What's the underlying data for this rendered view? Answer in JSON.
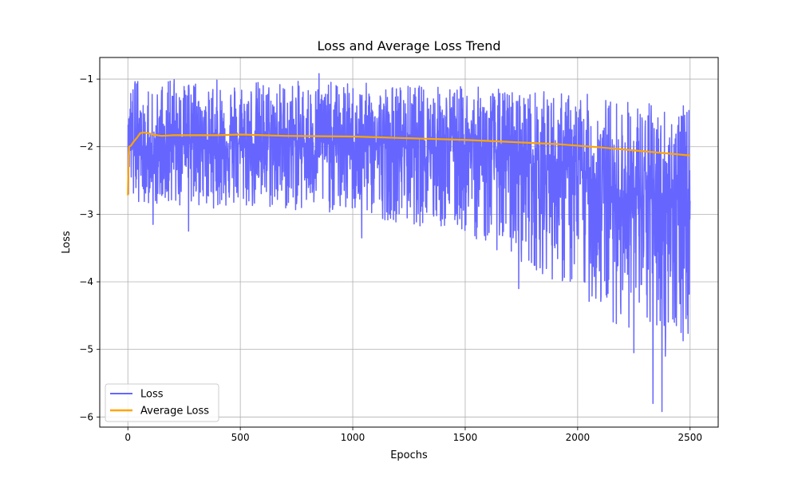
{
  "chart_data": {
    "type": "line",
    "title": "Loss and Average Loss Trend",
    "xlabel": "Epochs",
    "ylabel": "Loss",
    "xlim": [
      -125,
      2625
    ],
    "ylim": [
      -6.15,
      -0.68
    ],
    "xticks": [
      0,
      500,
      1000,
      1500,
      2000,
      2500
    ],
    "yticks": [
      -1,
      -2,
      -3,
      -4,
      -5,
      -6
    ],
    "grid": true,
    "legend": "lower-left",
    "series": [
      {
        "name": "Loss",
        "color": "#6666ff",
        "kind": "noisy",
        "x_range": [
          0,
          2500
        ],
        "points": 2501,
        "center": [
          [
            0,
            -2.0
          ],
          [
            500,
            -1.95
          ],
          [
            1000,
            -1.95
          ],
          [
            1500,
            -2.0
          ],
          [
            1800,
            -2.2
          ],
          [
            2000,
            -2.4
          ],
          [
            2200,
            -2.7
          ],
          [
            2400,
            -2.8
          ],
          [
            2500,
            -2.8
          ]
        ],
        "upper": [
          [
            0,
            -1.0
          ],
          [
            500,
            -1.0
          ],
          [
            1000,
            -1.05
          ],
          [
            1500,
            -1.1
          ],
          [
            2000,
            -1.2
          ],
          [
            2500,
            -1.4
          ]
        ],
        "lower": [
          [
            0,
            -2.8
          ],
          [
            300,
            -2.9
          ],
          [
            1000,
            -3.0
          ],
          [
            1500,
            -3.3
          ],
          [
            1800,
            -3.8
          ],
          [
            2000,
            -4.2
          ],
          [
            2200,
            -4.7
          ],
          [
            2500,
            -4.9
          ]
        ],
        "extremes": [
          [
            850,
            -0.92
          ],
          [
            112,
            -3.15
          ],
          [
            270,
            -3.25
          ],
          [
            1040,
            -3.35
          ],
          [
            1738,
            -4.1
          ],
          [
            2250,
            -5.05
          ],
          [
            2335,
            -5.8
          ],
          [
            2375,
            -5.92
          ],
          [
            2390,
            -5.1
          ],
          [
            2430,
            -4.6
          ],
          [
            2460,
            -4.75
          ],
          [
            2490,
            -4.15
          ]
        ]
      },
      {
        "name": "Average Loss",
        "color": "#ffa500",
        "kind": "smooth",
        "points_xy": [
          [
            0,
            -2.72
          ],
          [
            3,
            -2.15
          ],
          [
            6,
            -2.0
          ],
          [
            15,
            -1.98
          ],
          [
            25,
            -1.93
          ],
          [
            40,
            -1.87
          ],
          [
            55,
            -1.8
          ],
          [
            70,
            -1.79
          ],
          [
            90,
            -1.8
          ],
          [
            110,
            -1.82
          ],
          [
            150,
            -1.84
          ],
          [
            200,
            -1.83
          ],
          [
            300,
            -1.83
          ],
          [
            400,
            -1.83
          ],
          [
            500,
            -1.82
          ],
          [
            700,
            -1.84
          ],
          [
            1000,
            -1.85
          ],
          [
            1300,
            -1.88
          ],
          [
            1500,
            -1.9
          ],
          [
            1700,
            -1.93
          ],
          [
            1900,
            -1.96
          ],
          [
            2100,
            -2.01
          ],
          [
            2300,
            -2.07
          ],
          [
            2500,
            -2.13
          ]
        ]
      }
    ]
  }
}
